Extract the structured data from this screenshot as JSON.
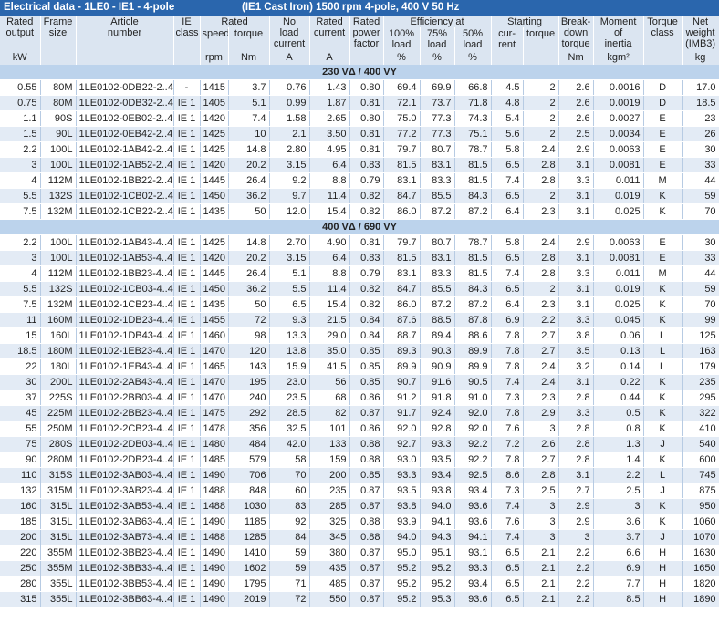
{
  "table": {
    "title": "Electrical data - 1LE0 - IE1 - 4-pole",
    "subtitle": "(IE1 Cast Iron) 1500 rpm 4-pole, 400 V 50 Hz",
    "head": [
      {
        "lines": [
          "Rated",
          "output"
        ],
        "unit": "kW"
      },
      {
        "lines": [
          "Frame",
          "size"
        ]
      },
      {
        "lines": [
          "Article",
          "number"
        ]
      },
      {
        "lines": [
          "IE",
          "class"
        ]
      },
      {
        "lines": [
          "Rated"
        ],
        "sub": [
          {
            "lines": [
              "speed"
            ],
            "unit": "rpm"
          },
          {
            "lines": [
              "torque"
            ],
            "unit": "Nm"
          }
        ]
      },
      {
        "lines": [
          "No",
          "load",
          "current"
        ],
        "unit": "A"
      },
      {
        "lines": [
          "Rated",
          "current"
        ],
        "unit": "A"
      },
      {
        "lines": [
          "Rated",
          "power",
          "factor"
        ]
      },
      {
        "lines": [
          "Efficiency at"
        ],
        "sub": [
          {
            "lines": [
              "100%",
              "load"
            ],
            "unit": "%"
          },
          {
            "lines": [
              "75%",
              "load"
            ],
            "unit": "%"
          },
          {
            "lines": [
              "50%",
              "load"
            ],
            "unit": "%"
          }
        ]
      },
      {
        "lines": [
          "Starting"
        ],
        "sub": [
          {
            "lines": [
              "cur-",
              "rent"
            ]
          },
          {
            "lines": [
              "torque"
            ]
          }
        ]
      },
      {
        "lines": [
          "Break-",
          "down",
          "torque"
        ],
        "unit": "Nm"
      },
      {
        "lines": [
          "Moment",
          "of",
          "inertia"
        ],
        "unit": "kgm²"
      },
      {
        "lines": [
          "Torque",
          "class"
        ]
      },
      {
        "lines": [
          "Net",
          "weight",
          "(IMB3)"
        ],
        "unit": "kg"
      }
    ],
    "sections": [
      {
        "label": "230 VΔ / 400 VY",
        "rows": [
          [
            "0.55",
            "80M",
            "1LE0102-0DB22-2..4",
            "-",
            "1415",
            "3.7",
            "0.76",
            "1.43",
            "0.80",
            "69.4",
            "69.9",
            "66.8",
            "4.5",
            "2",
            "2.6",
            "0.0016",
            "D",
            "17.0"
          ],
          [
            "0.75",
            "80M",
            "1LE0102-0DB32-2..4",
            "IE 1",
            "1405",
            "5.1",
            "0.99",
            "1.87",
            "0.81",
            "72.1",
            "73.7",
            "71.8",
            "4.8",
            "2",
            "2.6",
            "0.0019",
            "D",
            "18.5"
          ],
          [
            "1.1",
            "90S",
            "1LE0102-0EB02-2..4",
            "IE 1",
            "1420",
            "7.4",
            "1.58",
            "2.65",
            "0.80",
            "75.0",
            "77.3",
            "74.3",
            "5.4",
            "2",
            "2.6",
            "0.0027",
            "E",
            "23"
          ],
          [
            "1.5",
            "90L",
            "1LE0102-0EB42-2..4",
            "IE 1",
            "1425",
            "10",
            "2.1",
            "3.50",
            "0.81",
            "77.2",
            "77.3",
            "75.1",
            "5.6",
            "2",
            "2.5",
            "0.0034",
            "E",
            "26"
          ],
          [
            "2.2",
            "100L",
            "1LE0102-1AB42-2..4",
            "IE 1",
            "1425",
            "14.8",
            "2.80",
            "4.95",
            "0.81",
            "79.7",
            "80.7",
            "78.7",
            "5.8",
            "2.4",
            "2.9",
            "0.0063",
            "E",
            "30"
          ],
          [
            "3",
            "100L",
            "1LE0102-1AB52-2..4",
            "IE 1",
            "1420",
            "20.2",
            "3.15",
            "6.4",
            "0.83",
            "81.5",
            "83.1",
            "81.5",
            "6.5",
            "2.8",
            "3.1",
            "0.0081",
            "E",
            "33"
          ],
          [
            "4",
            "112M",
            "1LE0102-1BB22-2..4",
            "IE 1",
            "1445",
            "26.4",
            "9.2",
            "8.8",
            "0.79",
            "83.1",
            "83.3",
            "81.5",
            "7.4",
            "2.8",
            "3.3",
            "0.011",
            "M",
            "44"
          ],
          [
            "5.5",
            "132S",
            "1LE0102-1CB02-2..4",
            "IE 1",
            "1450",
            "36.2",
            "9.7",
            "11.4",
            "0.82",
            "84.7",
            "85.5",
            "84.3",
            "6.5",
            "2",
            "3.1",
            "0.019",
            "K",
            "59"
          ],
          [
            "7.5",
            "132M",
            "1LE0102-1CB22-2..4",
            "IE 1",
            "1435",
            "50",
            "12.0",
            "15.4",
            "0.82",
            "86.0",
            "87.2",
            "87.2",
            "6.4",
            "2.3",
            "3.1",
            "0.025",
            "K",
            "70"
          ]
        ]
      },
      {
        "label": "400 VΔ / 690 VY",
        "rows": [
          [
            "2.2",
            "100L",
            "1LE0102-1AB43-4..4",
            "IE 1",
            "1425",
            "14.8",
            "2.70",
            "4.90",
            "0.81",
            "79.7",
            "80.7",
            "78.7",
            "5.8",
            "2.4",
            "2.9",
            "0.0063",
            "E",
            "30"
          ],
          [
            "3",
            "100L",
            "1LE0102-1AB53-4..4",
            "IE 1",
            "1420",
            "20.2",
            "3.15",
            "6.4",
            "0.83",
            "81.5",
            "83.1",
            "81.5",
            "6.5",
            "2.8",
            "3.1",
            "0.0081",
            "E",
            "33"
          ],
          [
            "4",
            "112M",
            "1LE0102-1BB23-4..4",
            "IE 1",
            "1445",
            "26.4",
            "5.1",
            "8.8",
            "0.79",
            "83.1",
            "83.3",
            "81.5",
            "7.4",
            "2.8",
            "3.3",
            "0.011",
            "M",
            "44"
          ],
          [
            "5.5",
            "132S",
            "1LE0102-1CB03-4..4",
            "IE 1",
            "1450",
            "36.2",
            "5.5",
            "11.4",
            "0.82",
            "84.7",
            "85.5",
            "84.3",
            "6.5",
            "2",
            "3.1",
            "0.019",
            "K",
            "59"
          ],
          [
            "7.5",
            "132M",
            "1LE0102-1CB23-4..4",
            "IE 1",
            "1435",
            "50",
            "6.5",
            "15.4",
            "0.82",
            "86.0",
            "87.2",
            "87.2",
            "6.4",
            "2.3",
            "3.1",
            "0.025",
            "K",
            "70"
          ],
          [
            "11",
            "160M",
            "1LE0102-1DB23-4..4",
            "IE 1",
            "1455",
            "72",
            "9.3",
            "21.5",
            "0.84",
            "87.6",
            "88.5",
            "87.8",
            "6.9",
            "2.2",
            "3.3",
            "0.045",
            "K",
            "99"
          ],
          [
            "15",
            "160L",
            "1LE0102-1DB43-4..4",
            "IE 1",
            "1460",
            "98",
            "13.3",
            "29.0",
            "0.84",
            "88.7",
            "89.4",
            "88.6",
            "7.8",
            "2.7",
            "3.8",
            "0.06",
            "L",
            "125"
          ],
          [
            "18.5",
            "180M",
            "1LE0102-1EB23-4..4",
            "IE 1",
            "1470",
            "120",
            "13.8",
            "35.0",
            "0.85",
            "89.3",
            "90.3",
            "89.9",
            "7.8",
            "2.7",
            "3.5",
            "0.13",
            "L",
            "163"
          ],
          [
            "22",
            "180L",
            "1LE0102-1EB43-4..4",
            "IE 1",
            "1465",
            "143",
            "15.9",
            "41.5",
            "0.85",
            "89.9",
            "90.9",
            "89.9",
            "7.8",
            "2.4",
            "3.2",
            "0.14",
            "L",
            "179"
          ],
          [
            "30",
            "200L",
            "1LE0102-2AB43-4..4",
            "IE 1",
            "1470",
            "195",
            "23.0",
            "56",
            "0.85",
            "90.7",
            "91.6",
            "90.5",
            "7.4",
            "2.4",
            "3.1",
            "0.22",
            "K",
            "235"
          ],
          [
            "37",
            "225S",
            "1LE0102-2BB03-4..4",
            "IE 1",
            "1470",
            "240",
            "23.5",
            "68",
            "0.86",
            "91.2",
            "91.8",
            "91.0",
            "7.3",
            "2.3",
            "2.8",
            "0.44",
            "K",
            "295"
          ],
          [
            "45",
            "225M",
            "1LE0102-2BB23-4..4",
            "IE 1",
            "1475",
            "292",
            "28.5",
            "82",
            "0.87",
            "91.7",
            "92.4",
            "92.0",
            "7.8",
            "2.9",
            "3.3",
            "0.5",
            "K",
            "322"
          ],
          [
            "55",
            "250M",
            "1LE0102-2CB23-4..4",
            "IE 1",
            "1478",
            "356",
            "32.5",
            "101",
            "0.86",
            "92.0",
            "92.8",
            "92.0",
            "7.6",
            "3",
            "2.8",
            "0.8",
            "K",
            "410"
          ],
          [
            "75",
            "280S",
            "1LE0102-2DB03-4..4",
            "IE 1",
            "1480",
            "484",
            "42.0",
            "133",
            "0.88",
            "92.7",
            "93.3",
            "92.2",
            "7.2",
            "2.6",
            "2.8",
            "1.3",
            "J",
            "540"
          ],
          [
            "90",
            "280M",
            "1LE0102-2DB23-4..4",
            "IE 1",
            "1485",
            "579",
            "58",
            "159",
            "0.88",
            "93.0",
            "93.5",
            "92.2",
            "7.8",
            "2.7",
            "2.8",
            "1.4",
            "K",
            "600"
          ],
          [
            "110",
            "315S",
            "1LE0102-3AB03-4..4",
            "IE 1",
            "1490",
            "706",
            "70",
            "200",
            "0.85",
            "93.3",
            "93.4",
            "92.5",
            "8.6",
            "2.8",
            "3.1",
            "2.2",
            "L",
            "745"
          ],
          [
            "132",
            "315M",
            "1LE0102-3AB23-4..4",
            "IE 1",
            "1488",
            "848",
            "60",
            "235",
            "0.87",
            "93.5",
            "93.8",
            "93.4",
            "7.3",
            "2.5",
            "2.7",
            "2.5",
            "J",
            "875"
          ],
          [
            "160",
            "315L",
            "1LE0102-3AB53-4..4",
            "IE 1",
            "1488",
            "1030",
            "83",
            "285",
            "0.87",
            "93.8",
            "94.0",
            "93.6",
            "7.4",
            "3",
            "2.9",
            "3",
            "K",
            "950"
          ],
          [
            "185",
            "315L",
            "1LE0102-3AB63-4..4",
            "IE 1",
            "1490",
            "1185",
            "92",
            "325",
            "0.88",
            "93.9",
            "94.1",
            "93.6",
            "7.6",
            "3",
            "2.9",
            "3.6",
            "K",
            "1060"
          ],
          [
            "200",
            "315L",
            "1LE0102-3AB73-4..4",
            "IE 1",
            "1488",
            "1285",
            "84",
            "345",
            "0.88",
            "94.0",
            "94.3",
            "94.1",
            "7.4",
            "3",
            "3",
            "3.7",
            "J",
            "1070"
          ],
          [
            "220",
            "355M",
            "1LE0102-3BB23-4..4",
            "IE 1",
            "1490",
            "1410",
            "59",
            "380",
            "0.87",
            "95.0",
            "95.1",
            "93.1",
            "6.5",
            "2.1",
            "2.2",
            "6.6",
            "H",
            "1630"
          ],
          [
            "250",
            "355M",
            "1LE0102-3BB33-4..4",
            "IE 1",
            "1490",
            "1602",
            "59",
            "435",
            "0.87",
            "95.2",
            "95.2",
            "93.3",
            "6.5",
            "2.1",
            "2.2",
            "6.9",
            "H",
            "1650"
          ],
          [
            "280",
            "355L",
            "1LE0102-3BB53-4..4",
            "IE 1",
            "1490",
            "1795",
            "71",
            "485",
            "0.87",
            "95.2",
            "95.2",
            "93.4",
            "6.5",
            "2.1",
            "2.2",
            "7.7",
            "H",
            "1820"
          ],
          [
            "315",
            "355L",
            "1LE0102-3BB63-4..4",
            "IE 1",
            "1490",
            "2019",
            "72",
            "550",
            "0.87",
            "95.2",
            "95.3",
            "93.6",
            "6.5",
            "2.1",
            "2.2",
            "8.5",
            "H",
            "1890"
          ]
        ]
      }
    ]
  }
}
